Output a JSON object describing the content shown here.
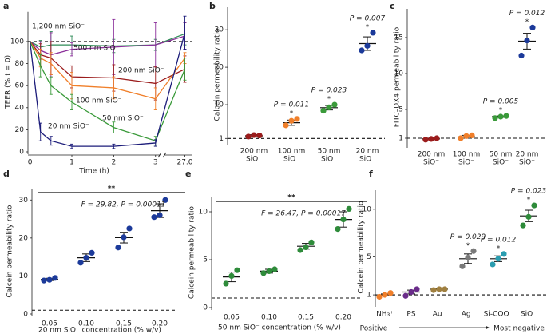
{
  "chart_data": [
    {
      "type": "line",
      "label": "a",
      "xlabel": "Time (h)",
      "ylabel": "TEER (% t = 0)",
      "x": [
        0,
        0.25,
        0.5,
        1,
        2,
        3,
        27
      ],
      "xlim": [
        [
          -0.05,
          3.1
        ],
        [
          26.4,
          27.2
        ]
      ],
      "xticks": [
        0,
        1,
        2,
        3,
        {
          "value": 27,
          "label": "27.0"
        }
      ],
      "ylim": [
        0,
        127
      ],
      "yticks": [
        0,
        20,
        40,
        60,
        80,
        100
      ],
      "reference_line": 100,
      "series": [
        {
          "name": "1,200 nm SiO⁻",
          "color": "#2e8b57",
          "values": [
            100,
            95,
            97,
            97,
            96,
            97,
            107
          ],
          "errors": [
            0,
            6,
            12,
            8,
            6,
            5,
            10
          ]
        },
        {
          "name": "500 nm SiO⁻",
          "color": "#8b2f9a",
          "values": [
            100,
            92,
            88,
            93,
            95,
            97,
            105
          ],
          "errors": [
            0,
            8,
            20,
            6,
            25,
            20,
            12
          ]
        },
        {
          "name": "200 nm SiO⁻",
          "color": "#9b1c1c",
          "values": [
            100,
            88,
            85,
            68,
            67,
            62,
            75
          ],
          "errors": [
            0,
            10,
            15,
            10,
            12,
            15,
            12
          ]
        },
        {
          "name": "100 nm SiO⁻",
          "color": "#f07f2a",
          "values": [
            100,
            85,
            80,
            60,
            58,
            48,
            85
          ],
          "errors": [
            0,
            8,
            10,
            12,
            10,
            10,
            5
          ]
        },
        {
          "name": "50 nm SiO⁻",
          "color": "#3a9a3a",
          "values": [
            100,
            78,
            60,
            45,
            22,
            10,
            75
          ],
          "errors": [
            0,
            10,
            8,
            7,
            5,
            4,
            10
          ]
        },
        {
          "name": "20 nm SiO⁻",
          "color": "#1c1c7a",
          "values": [
            100,
            18,
            10,
            5,
            5,
            8,
            108
          ],
          "errors": [
            0,
            8,
            4,
            2,
            2,
            3,
            15
          ]
        }
      ]
    },
    {
      "type": "strip",
      "label": "b",
      "ylabel": "Calcein permeability ratio",
      "categories": [
        [
          "200 nm",
          "SiO⁻"
        ],
        [
          "100 nm",
          "SiO⁻"
        ],
        [
          "50 nm",
          "SiO⁻"
        ],
        [
          "20 nm",
          "SiO⁻"
        ]
      ],
      "colors": [
        "#9b1c1c",
        "#f07f2a",
        "#3a9a3a",
        "#1c3a9a"
      ],
      "points": [
        [
          1.5,
          1.9,
          1.8
        ],
        [
          4.5,
          5.7,
          6.2
        ],
        [
          8.4,
          9.3,
          10.0
        ],
        [
          24.5,
          25.7,
          29.2
        ]
      ],
      "means": [
        1.7,
        5.2,
        9.2,
        26.3
      ],
      "errors": [
        0.3,
        0.7,
        0.6,
        1.8
      ],
      "stars": [
        null,
        "*",
        "*",
        "*"
      ],
      "p_labels": [
        null,
        "P = 0.011",
        "P = 0.023",
        "P = 0.007"
      ],
      "ylim": [
        0,
        36
      ],
      "yticks": [
        1,
        10,
        20,
        30
      ],
      "reference_line": 1
    },
    {
      "type": "strip",
      "label": "c",
      "ylabel": "FITC–DX4 permeability ratio",
      "categories": [
        [
          "200 nm",
          "SiO⁻"
        ],
        [
          "100 nm",
          "SiO⁻"
        ],
        [
          "50 nm",
          "SiO⁻"
        ],
        [
          "20 nm",
          "SiO⁻"
        ]
      ],
      "colors": [
        "#9b1c1c",
        "#f07f2a",
        "#3a9a3a",
        "#1c3a9a"
      ],
      "points": [
        [
          0.8,
          0.9,
          1.0
        ],
        [
          1.0,
          1.3,
          1.4
        ],
        [
          3.8,
          4.0,
          4.1
        ],
        [
          12.5,
          14.6,
          16.4
        ]
      ],
      "means": [
        0.9,
        1.2,
        4.0,
        14.5
      ],
      "errors": [
        0.1,
        0.2,
        0.1,
        1.1
      ],
      "stars": [
        null,
        null,
        "*",
        "*"
      ],
      "p_labels": [
        null,
        null,
        "P = 0.005",
        "P = 0.012"
      ],
      "ylim": [
        0,
        19
      ],
      "yticks": [
        1,
        5,
        10,
        15
      ],
      "reference_line": 1
    },
    {
      "type": "strip",
      "label": "d",
      "ylabel": "Calcein permeability ratio",
      "xlabel": "20 nm SiO⁻ concentration (% w/v)",
      "categories": [
        "0.05",
        "0.10",
        "0.15",
        "0.20"
      ],
      "colors": [
        "#1c3a9a",
        "#1c3a9a",
        "#1c3a9a",
        "#1c3a9a"
      ],
      "points": [
        [
          8.8,
          9.0,
          9.5
        ],
        [
          13.5,
          14.8,
          16.1
        ],
        [
          17.5,
          20.2,
          22.5
        ],
        [
          25.5,
          26.0,
          30.0
        ]
      ],
      "means": [
        9.1,
        14.8,
        20.1,
        27.2
      ],
      "errors": [
        0.3,
        1.0,
        1.4,
        1.8
      ],
      "bracket": {
        "stars": "**",
        "text": "F = 29.82, P = 0.00011"
      },
      "ylim": [
        0,
        33
      ],
      "yticks": [
        0,
        10,
        20,
        30
      ],
      "reference_line": 1
    },
    {
      "type": "strip",
      "label": "e",
      "ylabel": "Calcein permeability ratio",
      "xlabel": "50 nm SiO⁻ concentration (% w/v)",
      "categories": [
        "0.05",
        "0.10",
        "0.15",
        "0.20"
      ],
      "colors": [
        "#2e8b3a",
        "#2e8b3a",
        "#2e8b3a",
        "#2e8b3a"
      ],
      "points": [
        [
          2.5,
          3.3,
          3.9
        ],
        [
          3.6,
          3.8,
          4.0
        ],
        [
          6.0,
          6.3,
          6.8
        ],
        [
          8.2,
          9.2,
          10.3
        ]
      ],
      "means": [
        3.2,
        3.8,
        6.4,
        9.2
      ],
      "errors": [
        0.5,
        0.2,
        0.3,
        0.8
      ],
      "bracket": {
        "stars": "**",
        "text": "F = 26.47, P = 0.00017"
      },
      "ylim": [
        0,
        11.5
      ],
      "yticks": [
        0,
        5,
        10
      ],
      "reference_line": 1
    },
    {
      "type": "strip",
      "label": "f",
      "ylabel": "Calcein permeability ratio",
      "categories": [
        "NH₃⁺",
        "PS",
        "Au⁻",
        "Ag⁻",
        "Si-COO⁻",
        "SiO⁻"
      ],
      "colors": [
        "#f07f2a",
        "#6a2c8a",
        "#a08040",
        "#7a7a7a",
        "#2a9db0",
        "#2e8b3a"
      ],
      "points": [
        [
          0.8,
          1.0,
          1.2
        ],
        [
          0.9,
          1.3,
          1.6
        ],
        [
          1.5,
          1.6,
          1.6
        ],
        [
          4.0,
          4.9,
          5.6
        ],
        [
          4.2,
          4.8,
          5.3
        ],
        [
          8.3,
          9.2,
          10.4
        ]
      ],
      "means": [
        1.0,
        1.3,
        1.6,
        4.8,
        4.8,
        9.3
      ],
      "errors": [
        0.1,
        0.2,
        0.05,
        0.5,
        0.3,
        0.6
      ],
      "stars": [
        null,
        null,
        null,
        "*",
        "*",
        "*"
      ],
      "p_labels": [
        null,
        null,
        null,
        "P = 0.029",
        "P = 0.012",
        "P = 0.023"
      ],
      "ylim": [
        0,
        12
      ],
      "yticks": [
        1,
        5,
        10
      ],
      "reference_line": 1,
      "axis_note": {
        "left": "Positive",
        "right": "Most negative"
      }
    }
  ]
}
